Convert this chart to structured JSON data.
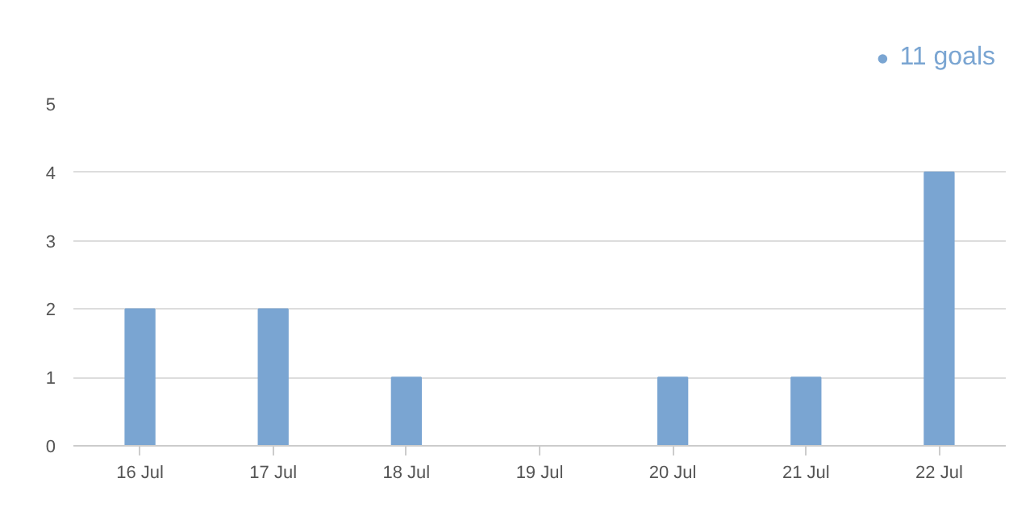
{
  "chart_data": {
    "type": "bar",
    "categories": [
      "16 Jul",
      "17 Jul",
      "18 Jul",
      "19 Jul",
      "20 Jul",
      "21 Jul",
      "22 Jul"
    ],
    "series": [
      {
        "name": "11 goals",
        "color": "#7aa5d2",
        "values": [
          2,
          2,
          1,
          0,
          1,
          1,
          4
        ]
      }
    ],
    "ylim": [
      0,
      5
    ],
    "yticks": [
      0,
      1,
      2,
      3,
      4,
      5
    ],
    "grid": "y",
    "legend": "top right"
  }
}
